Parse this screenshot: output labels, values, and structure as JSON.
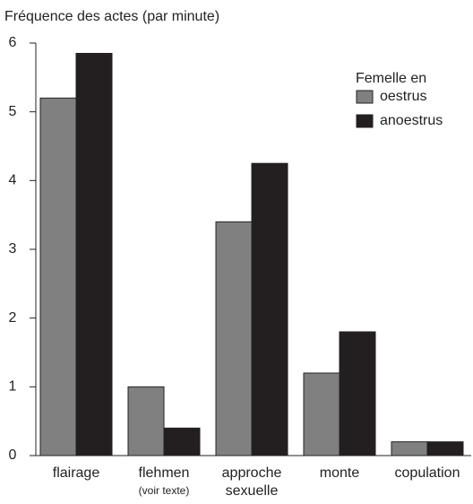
{
  "chart_data": {
    "type": "bar",
    "title": "Fréquence des actes (par minute)",
    "categories": [
      "flairage",
      "flehmen",
      "approche sexuelle",
      "monte",
      "copulation"
    ],
    "category_notes": [
      null,
      "(voir texte)",
      null,
      null,
      null
    ],
    "legend_title": "Femelle en",
    "series": [
      {
        "name": "oestrus",
        "color": "#808080",
        "values": [
          5.2,
          1.0,
          3.4,
          1.2,
          0.2
        ]
      },
      {
        "name": "anoestrus",
        "color": "#231f20",
        "values": [
          5.85,
          0.4,
          4.25,
          1.8,
          0.2
        ]
      }
    ],
    "ylim": [
      0,
      6
    ],
    "yticks": [
      0,
      1,
      2,
      3,
      4,
      5,
      6
    ],
    "grid": false,
    "legend": "upper right"
  }
}
